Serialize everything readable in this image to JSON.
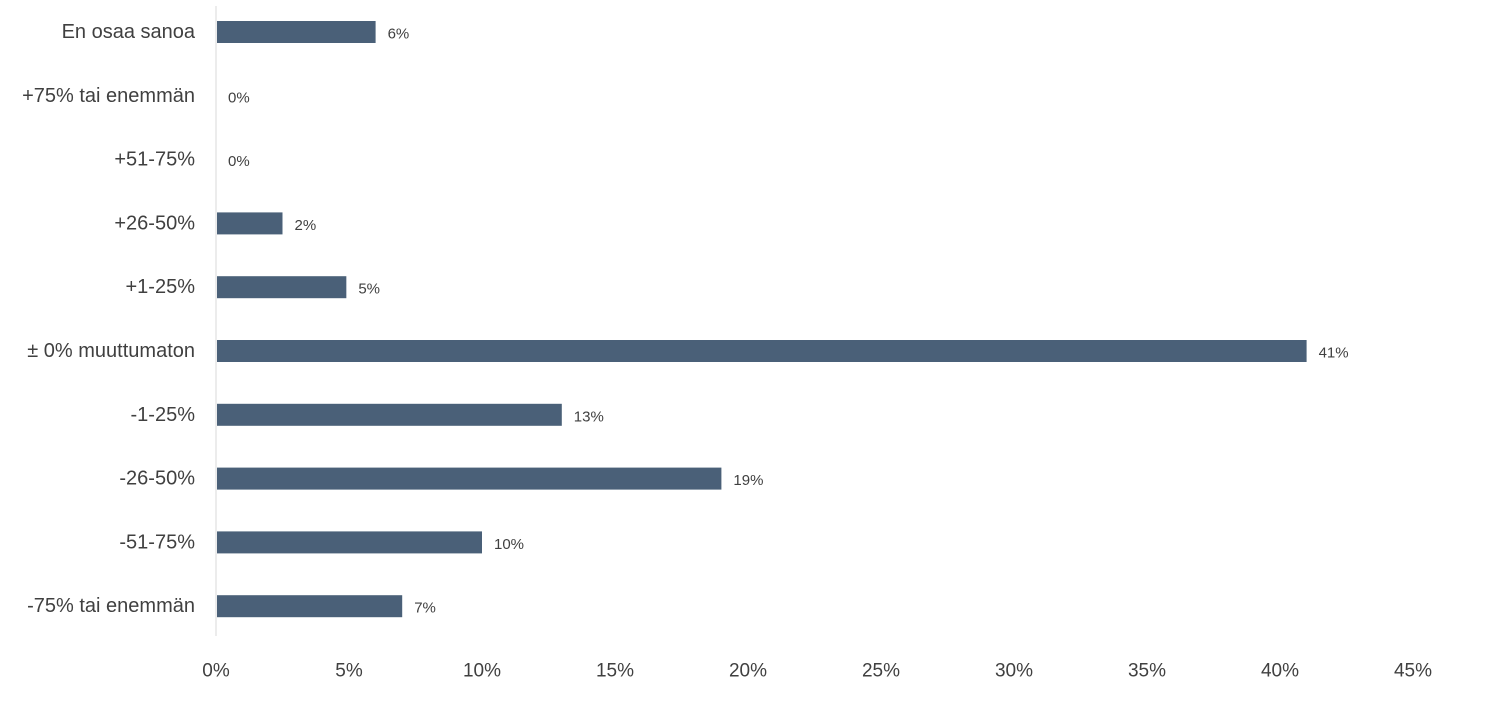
{
  "chart_data": {
    "type": "bar",
    "orientation": "horizontal",
    "categories": [
      "En osaa sanoa",
      "+75% tai enemmän",
      "+51-75%",
      "+26-50%",
      "+1-25%",
      "± 0% muuttumaton",
      "-1-25%",
      "-26-50%",
      "-51-75%",
      "-75% tai enemmän"
    ],
    "values": [
      6,
      0,
      0,
      2.5,
      4.9,
      41,
      13,
      19,
      10,
      7
    ],
    "data_labels": [
      "6%",
      "0%",
      "0%",
      "2%",
      "5%",
      "41%",
      "13%",
      "19%",
      "10%",
      "7%"
    ],
    "x_ticks": [
      0,
      5,
      10,
      15,
      20,
      25,
      30,
      35,
      40,
      45
    ],
    "x_tick_labels": [
      "0%",
      "5%",
      "10%",
      "15%",
      "20%",
      "25%",
      "30%",
      "35%",
      "40%",
      "45%"
    ],
    "xlim": [
      0,
      45
    ],
    "title": "",
    "xlabel": "",
    "ylabel": "",
    "grid": false,
    "legend": "none",
    "bar_color": "#4a6078",
    "axis_color": "#d9d9d9",
    "text_color": "#404040"
  }
}
